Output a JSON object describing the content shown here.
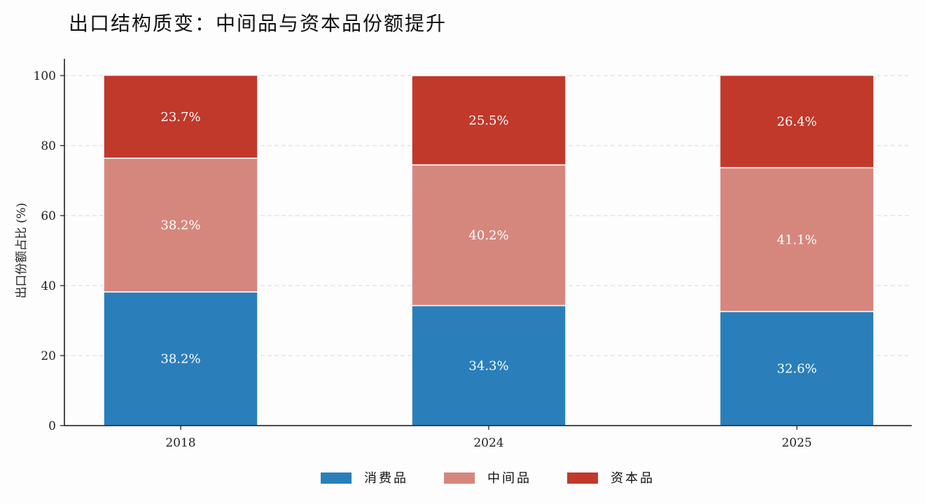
{
  "chart_data": {
    "type": "bar",
    "stacked": true,
    "title": "出口结构质变：中间品与资本品份额提升",
    "xlabel": "",
    "ylabel": "出口份额占比 (%)",
    "categories": [
      "2018",
      "2024",
      "2025"
    ],
    "ylim": [
      0,
      100
    ],
    "yticks": [
      0,
      20,
      40,
      60,
      80,
      100
    ],
    "grid": true,
    "legend_position": "bottom-center",
    "series": [
      {
        "name": "消费品",
        "values": [
          38.2,
          34.3,
          32.6
        ],
        "labels": [
          "38.2%",
          "34.3%",
          "32.6%"
        ],
        "color": "#2a7fba"
      },
      {
        "name": "中间品",
        "values": [
          38.2,
          40.2,
          41.1
        ],
        "labels": [
          "38.2%",
          "40.2%",
          "41.1%"
        ],
        "color": "#d6877d"
      },
      {
        "name": "资本品",
        "values": [
          23.7,
          25.5,
          26.4
        ],
        "labels": [
          "23.7%",
          "25.5%",
          "26.4%"
        ],
        "color": "#c0392b"
      }
    ]
  }
}
